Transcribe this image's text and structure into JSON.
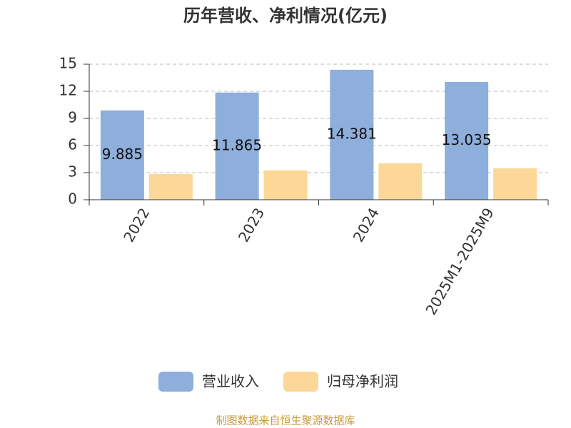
{
  "chart_data": {
    "type": "bar",
    "title": "历年营收、净利情况(亿元)",
    "categories": [
      "2022",
      "2023",
      "2024",
      "2025M1-2025M9"
    ],
    "series": [
      {
        "name": "营业收入",
        "color": "#8eaedb",
        "values": [
          9.885,
          11.865,
          14.381,
          13.035
        ],
        "show_labels": true
      },
      {
        "name": "归母净利润",
        "color": "#fdd797",
        "values": [
          2.84,
          3.24,
          4.03,
          3.47
        ],
        "show_labels": false
      }
    ],
    "ylim": [
      0,
      15
    ],
    "yticks": [
      0,
      3,
      6,
      9,
      12,
      15
    ],
    "grid": true,
    "legend": "bottom",
    "source": "制图数据来自恒生聚源数据库"
  }
}
